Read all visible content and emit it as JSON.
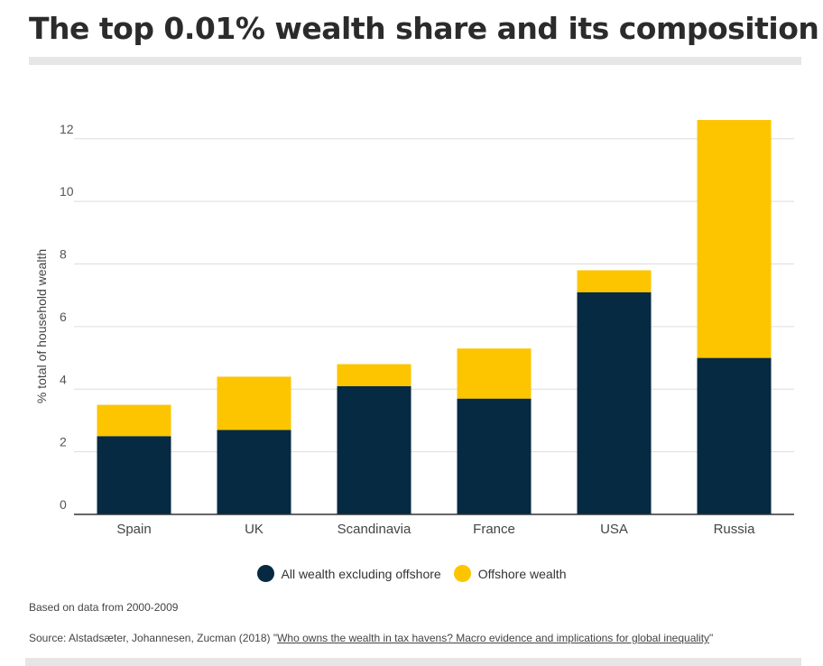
{
  "title": "The top 0.01% wealth share and its composition",
  "colors": {
    "onshore": "#052a41",
    "offshore": "#fcc500",
    "grid": "#dddddd",
    "axis": "#333333"
  },
  "legend": {
    "onshore": "All wealth excluding offshore",
    "offshore": "Offshore wealth"
  },
  "note": "Based on data from 2000-2009",
  "source": {
    "prefix": "Source: Alstadsæter, Johannesen, Zucman (2018) \"",
    "link_text": "Who owns the wealth in tax havens? Macro evidence and implications for global inequality",
    "suffix": "\""
  },
  "chart_data": {
    "type": "bar",
    "stacked": true,
    "title": "The top 0.01% wealth share and its composition",
    "xlabel": "",
    "ylabel": "% total of household wealth",
    "ylim": [
      0,
      12.6
    ],
    "yticks": [
      0,
      2,
      4,
      6,
      8,
      10,
      12
    ],
    "grid": true,
    "legend_position": "bottom",
    "categories": [
      "Spain",
      "UK",
      "Scandinavia",
      "France",
      "USA",
      "Russia"
    ],
    "series": [
      {
        "name": "All wealth excluding offshore",
        "key": "onshore",
        "values": [
          2.5,
          2.7,
          4.1,
          3.7,
          7.1,
          5.0
        ]
      },
      {
        "name": "Offshore wealth",
        "key": "offshore",
        "values": [
          1.0,
          1.7,
          0.7,
          1.6,
          0.7,
          7.6
        ]
      }
    ]
  }
}
